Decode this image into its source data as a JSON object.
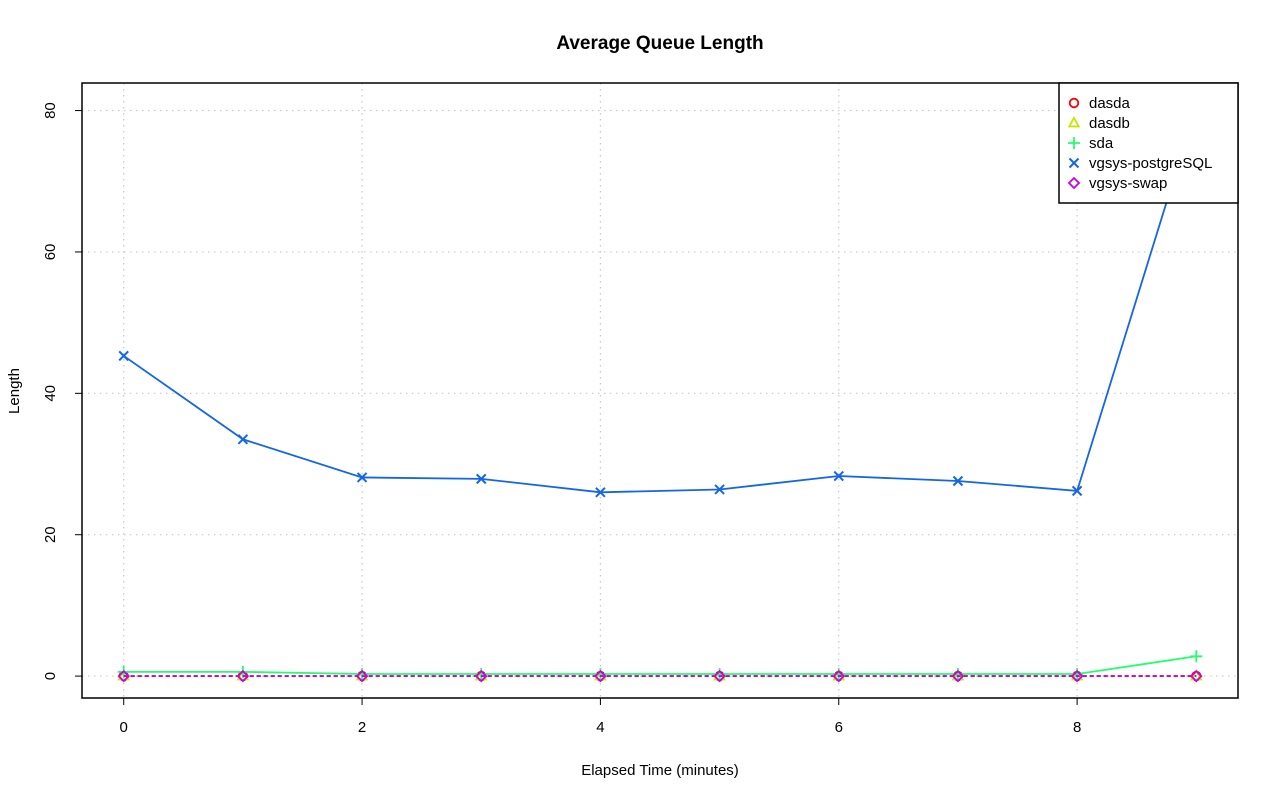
{
  "chart_data": {
    "type": "line",
    "title": "Average Queue Length",
    "xlabel": "Elapsed Time (minutes)",
    "ylabel": "Length",
    "xlim": [
      -0.35,
      9.35
    ],
    "ylim": [
      -3.1,
      83.9
    ],
    "x_ticks": [
      0,
      2,
      4,
      6,
      8
    ],
    "y_ticks": [
      0,
      20,
      40,
      60,
      80
    ],
    "x_tick_labels": [
      "0",
      "2",
      "4",
      "6",
      "8"
    ],
    "y_tick_labels": [
      "0",
      "20",
      "40",
      "60",
      "80"
    ],
    "grid": true,
    "legend_position": "top-right",
    "x": [
      0,
      1,
      2,
      3,
      4,
      5,
      6,
      7,
      8,
      9
    ],
    "series": [
      {
        "name": "dasda",
        "color": "#ff0000",
        "marker": "circle",
        "line": "dashed",
        "values": [
          0,
          0,
          0,
          0,
          0,
          0,
          0,
          0,
          0,
          0
        ]
      },
      {
        "name": "dasdb",
        "color": "#c8e600",
        "marker": "triangle",
        "line": "dashed",
        "values": [
          0,
          0,
          0,
          0,
          0,
          0,
          0,
          0,
          0,
          0
        ]
      },
      {
        "name": "sda",
        "color": "#22ff6e",
        "marker": "plus",
        "line": "solid",
        "values": [
          0.6,
          0.6,
          0.3,
          0.3,
          0.3,
          0.3,
          0.3,
          0.3,
          0.3,
          2.8
        ]
      },
      {
        "name": "vgsys-postgreSQL",
        "color": "#1466e6",
        "marker": "cross",
        "line": "solid",
        "values": [
          45.3,
          33.5,
          28.1,
          27.9,
          26.0,
          26.4,
          28.3,
          27.6,
          26.2,
          80.6
        ]
      },
      {
        "name": "vgsys-swap",
        "color": "#c800e0",
        "marker": "diamond",
        "line": "dashed",
        "values": [
          0,
          0,
          0,
          0,
          0,
          0,
          0,
          0,
          0,
          0
        ]
      }
    ]
  }
}
